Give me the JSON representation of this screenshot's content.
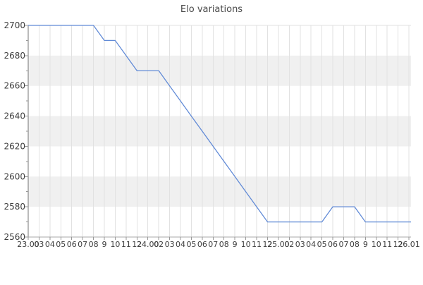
{
  "title": "Elo variations",
  "chart_data": {
    "type": "line",
    "title": "Elo variations",
    "xlabel": "",
    "ylabel": "",
    "x_tick_labels": [
      "23.00",
      "03",
      "04",
      "05",
      "06",
      "07",
      "08",
      "9",
      "10",
      "11",
      "12",
      "24.00",
      "02",
      "03",
      "04",
      "05",
      "06",
      "07",
      "08",
      "9",
      "10",
      "11",
      "12",
      "25.00",
      "02",
      "03",
      "04",
      "05",
      "06",
      "07",
      "08",
      "9",
      "10",
      "11",
      "12",
      "26.01"
    ],
    "y_ticks": [
      2700,
      2680,
      2660,
      2640,
      2620,
      2600,
      2580,
      2560
    ],
    "y_minor_step": 10,
    "ylim": [
      2560,
      2700
    ],
    "series": [
      {
        "name": "Elo",
        "values": [
          2700,
          2700,
          2700,
          2700,
          2700,
          2700,
          2700,
          2690,
          2690,
          2680,
          2670,
          2670,
          2670,
          2660,
          2650,
          2640,
          2630,
          2620,
          2610,
          2600,
          2590,
          2580,
          2570,
          2570,
          2570,
          2570,
          2570,
          2570,
          2580,
          2580,
          2580,
          2570,
          2570,
          2570,
          2570,
          2570
        ]
      }
    ],
    "legend": "none",
    "grid": {
      "vertical_gridlines": true,
      "horizontal_gridlines": false,
      "alternating_horizontal_bands": true
    },
    "colors": {
      "line": "#5f89d6",
      "band": "#f0f0f0",
      "gridline": "#e2e2e2",
      "plot_top_border": "#e0e0e0",
      "y_axis": "#757575",
      "x_axis": "#a8a8a8",
      "tick": "#999999",
      "text": "#3d3d3d",
      "title": "#4a4a4a",
      "background": "#ffffff"
    }
  }
}
